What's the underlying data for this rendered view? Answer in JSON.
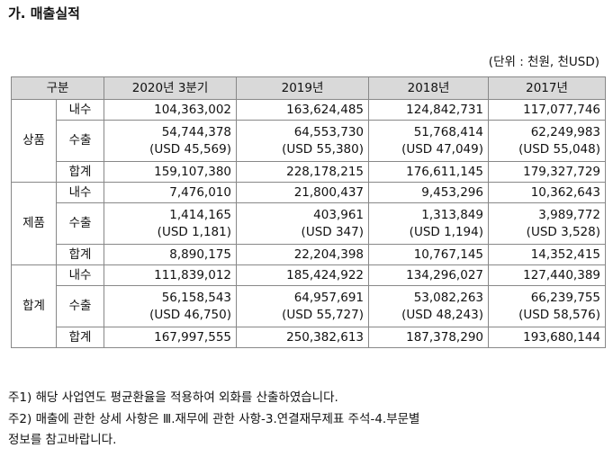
{
  "section_title": "가. 매출실적",
  "unit_note": "(단위 : 천원, 천USD)",
  "table": {
    "headers": [
      "구분",
      "2020년 3분기",
      "2019년",
      "2018년",
      "2017년"
    ],
    "groups": [
      {
        "name": "상품",
        "rows": [
          {
            "label": "내수",
            "values": [
              [
                "104,363,002"
              ],
              [
                "163,624,485"
              ],
              [
                "124,842,731"
              ],
              [
                "117,077,746"
              ]
            ]
          },
          {
            "label": "수출",
            "values": [
              [
                "54,744,378",
                "(USD 45,569)"
              ],
              [
                "64,553,730",
                "(USD 55,380)"
              ],
              [
                "51,768,414",
                "(USD 47,049)"
              ],
              [
                "62,249,983",
                "(USD 55,048)"
              ]
            ]
          },
          {
            "label": "합계",
            "values": [
              [
                "159,107,380"
              ],
              [
                "228,178,215"
              ],
              [
                "176,611,145"
              ],
              [
                "179,327,729"
              ]
            ]
          }
        ]
      },
      {
        "name": "제품",
        "rows": [
          {
            "label": "내수",
            "values": [
              [
                "7,476,010"
              ],
              [
                "21,800,437"
              ],
              [
                "9,453,296"
              ],
              [
                "10,362,643"
              ]
            ]
          },
          {
            "label": "수출",
            "values": [
              [
                "1,414,165",
                "(USD 1,181)"
              ],
              [
                "403,961",
                "(USD 347)"
              ],
              [
                "1,313,849",
                "(USD 1,194)"
              ],
              [
                "3,989,772",
                "(USD 3,528)"
              ]
            ]
          },
          {
            "label": "합계",
            "values": [
              [
                "8,890,175"
              ],
              [
                "22,204,398"
              ],
              [
                "10,767,145"
              ],
              [
                "14,352,415"
              ]
            ]
          }
        ]
      },
      {
        "name": "합계",
        "rows": [
          {
            "label": "내수",
            "values": [
              [
                "111,839,012"
              ],
              [
                "185,424,922"
              ],
              [
                "134,296,027"
              ],
              [
                "127,440,389"
              ]
            ]
          },
          {
            "label": "수출",
            "values": [
              [
                "56,158,543",
                "(USD 46,750)"
              ],
              [
                "64,957,691",
                "(USD 55,727)"
              ],
              [
                "53,082,263",
                "(USD 48,243)"
              ],
              [
                "66,239,755",
                "(USD 58,576)"
              ]
            ]
          },
          {
            "label": "합계",
            "values": [
              [
                "167,997,555"
              ],
              [
                "250,382,613"
              ],
              [
                "187,378,290"
              ],
              [
                "193,680,144"
              ]
            ]
          }
        ]
      }
    ]
  },
  "notes": [
    "주1) 해당 사업연도 평균환율을 적용하여 외화를 산출하였습니다.",
    "주2) 매출에 관한 상세 사항은 Ⅲ.재무에 관한 사항-3.연결재무제표 주석-4.부문별",
    "정보를 참고바랍니다."
  ],
  "colors": {
    "header_bg": "#d9d9d9",
    "border": "#888888",
    "text": "#111111"
  }
}
